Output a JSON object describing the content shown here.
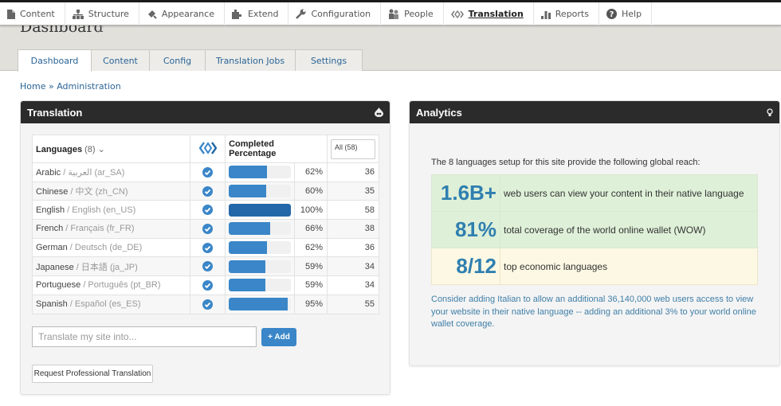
{
  "toolbar": {
    "items": [
      {
        "label": "Content",
        "icon": "file-icon"
      },
      {
        "label": "Structure",
        "icon": "sitemap-icon"
      },
      {
        "label": "Appearance",
        "icon": "paintbrush-icon"
      },
      {
        "label": "Extend",
        "icon": "puzzle-icon"
      },
      {
        "label": "Configuration",
        "icon": "wrench-icon"
      },
      {
        "label": "People",
        "icon": "people-icon"
      },
      {
        "label": "Translation",
        "icon": "translation-icon",
        "active": true
      },
      {
        "label": "Reports",
        "icon": "bar-chart-icon"
      },
      {
        "label": "Help",
        "icon": "help-icon"
      }
    ]
  },
  "header": {
    "title": "Dashboard",
    "tabs": [
      "Dashboard",
      "Content",
      "Config",
      "Translation Jobs",
      "Settings"
    ],
    "active_tab": "Dashboard"
  },
  "breadcrumb": "Home » Administration",
  "translation_panel": {
    "title": "Translation",
    "table": {
      "header_languages": "Languages",
      "header_count": "(8)",
      "header_completed": "Completed Percentage",
      "filter_value": "All (58)",
      "rows": [
        {
          "name": "Arabic",
          "native": " / العربية (ar_SA)",
          "pct": 62,
          "pct_label": "62%",
          "count": "36"
        },
        {
          "name": "Chinese",
          "native": " / 中文 (zh_CN)",
          "pct": 60,
          "pct_label": "60%",
          "count": "35"
        },
        {
          "name": "English",
          "native": " / English (en_US)",
          "pct": 100,
          "pct_label": "100%",
          "count": "58"
        },
        {
          "name": "French",
          "native": " / Français (fr_FR)",
          "pct": 66,
          "pct_label": "66%",
          "count": "38"
        },
        {
          "name": "German",
          "native": " / Deutsch (de_DE)",
          "pct": 62,
          "pct_label": "62%",
          "count": "36"
        },
        {
          "name": "Japanese",
          "native": " / 日本語 (ja_JP)",
          "pct": 59,
          "pct_label": "59%",
          "count": "34"
        },
        {
          "name": "Portuguese",
          "native": " / Português (pt_BR)",
          "pct": 59,
          "pct_label": "59%",
          "count": "34"
        },
        {
          "name": "Spanish",
          "native": " / Español (es_ES)",
          "pct": 95,
          "pct_label": "95%",
          "count": "55"
        }
      ]
    },
    "input_placeholder": "Translate my site into...",
    "add_label": "+ Add",
    "request_label": "Request Professional Translation"
  },
  "analytics_panel": {
    "title": "Analytics",
    "intro": "The 8 languages setup for this site provide the following global reach:",
    "stats": [
      {
        "value": "1.6B+",
        "desc": "web users can view your content in their native language",
        "tone": "green"
      },
      {
        "value": "81%",
        "desc": "total coverage of the world online wallet (WOW)",
        "tone": "green"
      },
      {
        "value": "8/12",
        "desc": "top economic languages",
        "tone": "yellow"
      }
    ],
    "suggestion": "Consider adding Italian to allow an additional 36,140,000 web users access to view your website in their native language -- adding an additional 3% to your world online wallet coverage."
  },
  "colors": {
    "accent": "#3a86c8",
    "accent_dark": "#2367a8",
    "panel_header": "#2b2b2b",
    "stat_green": "#dff0d8",
    "stat_yellow": "#fcf8e3",
    "stat_number": "#2f7fb0"
  }
}
